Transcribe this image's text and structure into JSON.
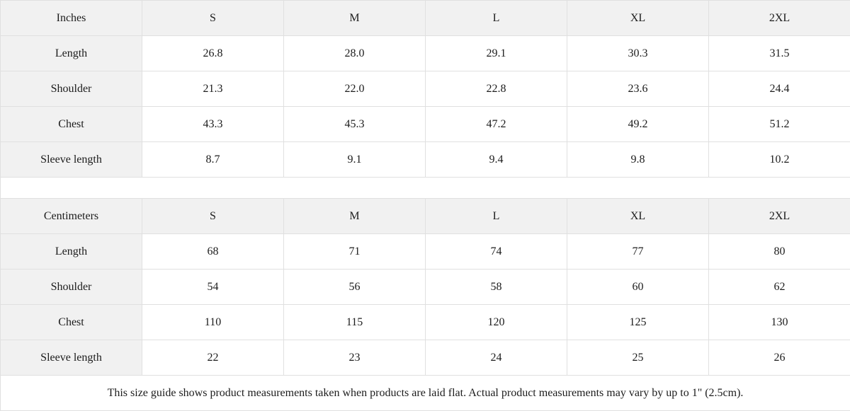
{
  "colors": {
    "header_bg": "#f1f1f1",
    "label_bg": "#f1f1f1",
    "border": "#e0e0e0",
    "text": "#1c1c1c",
    "background": "#ffffff"
  },
  "size_guide": {
    "tables": [
      {
        "unit_label": "Inches",
        "sizes": [
          "S",
          "M",
          "L",
          "XL",
          "2XL"
        ],
        "rows": [
          {
            "label": "Length",
            "values": [
              "26.8",
              "28.0",
              "29.1",
              "30.3",
              "31.5"
            ]
          },
          {
            "label": "Shoulder",
            "values": [
              "21.3",
              "22.0",
              "22.8",
              "23.6",
              "24.4"
            ]
          },
          {
            "label": "Chest",
            "values": [
              "43.3",
              "45.3",
              "47.2",
              "49.2",
              "51.2"
            ]
          },
          {
            "label": "Sleeve length",
            "values": [
              "8.7",
              "9.1",
              "9.4",
              "9.8",
              "10.2"
            ]
          }
        ]
      },
      {
        "unit_label": "Centimeters",
        "sizes": [
          "S",
          "M",
          "L",
          "XL",
          "2XL"
        ],
        "rows": [
          {
            "label": "Length",
            "values": [
              "68",
              "71",
              "74",
              "77",
              "80"
            ]
          },
          {
            "label": "Shoulder",
            "values": [
              "54",
              "56",
              "58",
              "60",
              "62"
            ]
          },
          {
            "label": "Chest",
            "values": [
              "110",
              "115",
              "120",
              "125",
              "130"
            ]
          },
          {
            "label": "Sleeve length",
            "values": [
              "22",
              "23",
              "24",
              "25",
              "26"
            ]
          }
        ]
      }
    ],
    "footnote": "This size guide shows product measurements taken when products are laid flat.  Actual product measurements may vary by up to 1\" (2.5cm)."
  }
}
